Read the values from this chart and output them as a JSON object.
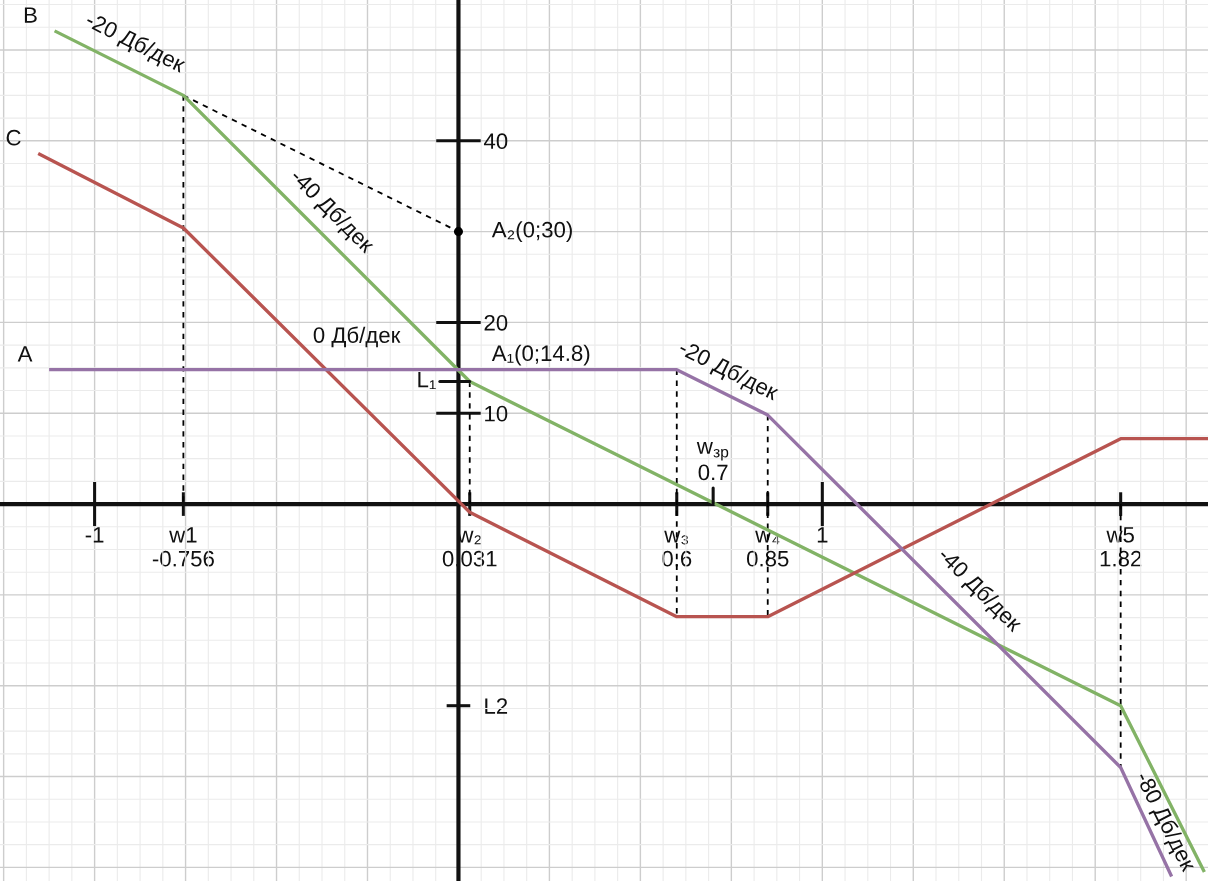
{
  "chart_data": {
    "type": "line",
    "xlim": [
      -1.26,
      2.06
    ],
    "ylim": [
      -41.5,
      55.5
    ],
    "xticks": [
      {
        "value": -1.25,
        "label": null
      },
      -1,
      {
        "value": -0.756,
        "label": "w1\n-0.756"
      },
      {
        "value": -0.75,
        "label": null
      },
      {
        "value": -0.5,
        "label": null
      },
      {
        "value": -0.25,
        "label": null
      },
      {
        "value": 0,
        "label": null
      },
      {
        "value": 0.031,
        "label": "w₂\n0.031"
      },
      {
        "value": 0.25,
        "label": null
      },
      {
        "value": 0.5,
        "label": null
      },
      {
        "value": 0.6,
        "label": "w₃\n0.6"
      },
      {
        "value": 0.75,
        "label": null
      },
      {
        "value": 0.85,
        "label": "w₄\n0.85"
      },
      1,
      {
        "value": 1.25,
        "label": null
      },
      {
        "value": 1.5,
        "label": null
      },
      {
        "value": 1.75,
        "label": null
      },
      {
        "value": 1.82,
        "label": "w5\n1.82"
      },
      {
        "value": 2,
        "label": null
      }
    ],
    "yticks": [
      {
        "value": -40,
        "label": null
      },
      {
        "value": -30,
        "label": null
      },
      {
        "value": -22.2,
        "label": "L2"
      },
      {
        "value": -20,
        "label": null
      },
      {
        "value": -10,
        "label": null
      },
      {
        "value": 0,
        "label": null
      },
      10,
      20,
      {
        "value": 30,
        "label": null
      },
      40,
      {
        "value": 50,
        "label": null
      }
    ],
    "grid": true,
    "series": [
      {
        "name": "B",
        "color": "#82b366",
        "x": [
          -1.11,
          -0.756,
          0.031,
          1.82,
          2.05
        ],
        "values": [
          52.1,
          45,
          13.5,
          -22.2,
          -40.5
        ]
      },
      {
        "name": "C",
        "color": "#b85450",
        "x": [
          -1.155,
          -0.756,
          0.031,
          0.6,
          0.85,
          1.82,
          2.06
        ],
        "values": [
          38.6,
          30.4,
          -0.9,
          -12.4,
          -12.4,
          7.2,
          7.2
        ]
      },
      {
        "name": "A",
        "color": "#9673a6",
        "x": [
          -1.125,
          0.6,
          0.85,
          1.82,
          1.96
        ],
        "values": [
          14.8,
          14.8,
          9.8,
          -29,
          -41
        ]
      },
      {
        "color": "#000000",
        "line_style": "dashed",
        "x": [
          -0.756,
          0
        ],
        "values": [
          45,
          30
        ]
      },
      {
        "color": "#000000",
        "line_style": "dashed",
        "x": [
          -0.756,
          -0.756
        ],
        "values": [
          45,
          0
        ]
      },
      {
        "color": "#000000",
        "line_style": "dashed",
        "x": [
          0.031,
          0.031
        ],
        "values": [
          13.5,
          0
        ]
      },
      {
        "color": "#000000",
        "line_style": "dashed",
        "x": [
          0.6,
          0.6
        ],
        "values": [
          14.8,
          -12.4
        ]
      },
      {
        "color": "#000000",
        "line_style": "dashed",
        "x": [
          0.85,
          0.85
        ],
        "values": [
          9.8,
          -12.4
        ]
      },
      {
        "color": "#000000",
        "line_style": "dashed",
        "x": [
          1.82,
          1.82
        ],
        "values": [
          0,
          -29
        ]
      },
      {
        "type": "scatter",
        "color": "#000000",
        "marker": "circle",
        "x": [
          0
        ],
        "values": [
          30
        ]
      }
    ],
    "annotations": [
      "-20 Дб/дек",
      "-40 Дб/дек",
      "0 Дб/дек",
      "-20 Дб/дек",
      "-40 Дб/дек",
      "-80 Дб/дек",
      {
        "text": "A₂(0;30)",
        "x": 0,
        "y": 30
      },
      {
        "text": "A₁(0;14.8)",
        "x": 0,
        "y": 14.8
      },
      {
        "text": "L₁",
        "x": 0.031,
        "y": 13.5
      },
      {
        "text": "w$_{зр}$\n0.7",
        "x": 0.7,
        "y": 0
      }
    ]
  }
}
